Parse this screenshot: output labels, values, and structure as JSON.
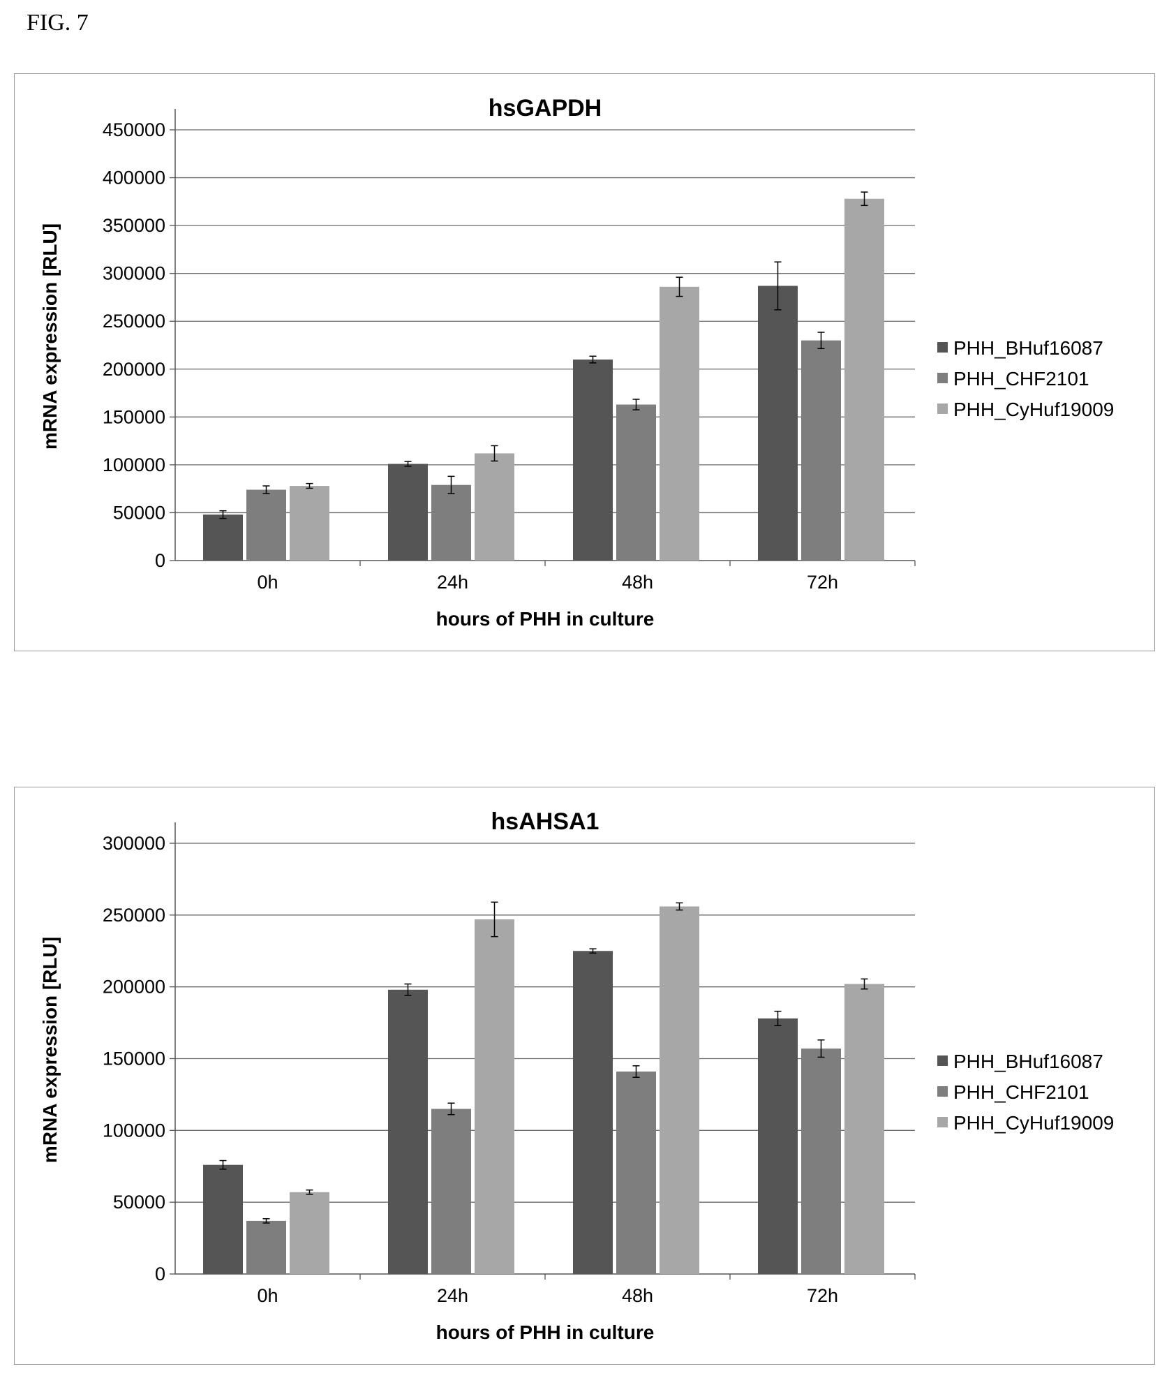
{
  "figure_label": "FIG. 7",
  "colors": {
    "PHH_BHuf16087": "#555555",
    "PHH_CHF2101": "#7e7e7e",
    "PHH_CyHuf19009": "#a7a7a7"
  },
  "chart_data": [
    {
      "type": "bar",
      "title": "hsGAPDH",
      "xlabel": "hours of PHH in culture",
      "ylabel": "mRNA expression [RLU]",
      "ylim": [
        0,
        450000
      ],
      "yticks": [
        "0",
        "50000",
        "100000",
        "150000",
        "200000",
        "250000",
        "300000",
        "350000",
        "400000",
        "450000"
      ],
      "grid": true,
      "legend_position": "right",
      "categories": [
        "0h",
        "24h",
        "48h",
        "72h"
      ],
      "series": [
        {
          "name": "PHH_BHuf16087",
          "values": [
            48000,
            101000,
            210000,
            287000
          ],
          "errors": [
            4000,
            2500,
            3500,
            25000
          ]
        },
        {
          "name": "PHH_CHF2101",
          "values": [
            74000,
            79000,
            163000,
            230000
          ],
          "errors": [
            4000,
            9000,
            5500,
            8500
          ]
        },
        {
          "name": "PHH_CyHuf19009",
          "values": [
            78000,
            112000,
            286000,
            378000
          ],
          "errors": [
            2500,
            8000,
            10000,
            7000
          ]
        }
      ]
    },
    {
      "type": "bar",
      "title": "hsAHSA1",
      "xlabel": "hours of PHH in culture",
      "ylabel": "mRNA expression [RLU]",
      "ylim": [
        0,
        300000
      ],
      "yticks": [
        "0",
        "50000",
        "100000",
        "150000",
        "200000",
        "250000",
        "300000"
      ],
      "grid": true,
      "legend_position": "right",
      "categories": [
        "0h",
        "24h",
        "48h",
        "72h"
      ],
      "series": [
        {
          "name": "PHH_BHuf16087",
          "values": [
            76000,
            198000,
            225000,
            178000
          ],
          "errors": [
            3000,
            4000,
            1500,
            5000
          ]
        },
        {
          "name": "PHH_CHF2101",
          "values": [
            37000,
            115000,
            141000,
            157000
          ],
          "errors": [
            1500,
            4000,
            4000,
            6000
          ]
        },
        {
          "name": "PHH_CyHuf19009",
          "values": [
            57000,
            247000,
            256000,
            202000
          ],
          "errors": [
            1500,
            12000,
            2500,
            3500
          ]
        }
      ]
    }
  ]
}
